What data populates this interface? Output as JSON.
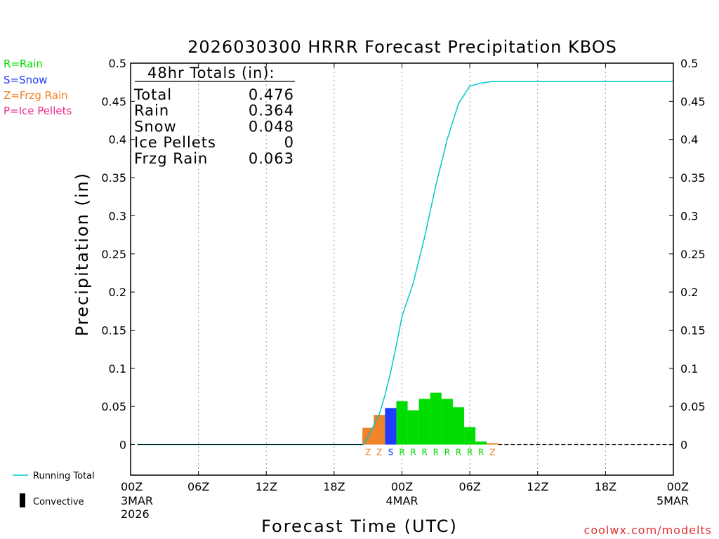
{
  "chart_data": {
    "type": "bar",
    "title": "2026030300 HRRR Forecast Precipitation KBOS",
    "xlabel": "Forecast Time (UTC)",
    "ylabel": "Precipitation (in)",
    "ylim": [
      -0.04,
      0.5
    ],
    "xlim_hours": [
      0,
      48
    ],
    "y_ticks": [
      "0.5",
      "0.45",
      "0.4",
      "0.35",
      "0.3",
      "0.25",
      "0.2",
      "0.15",
      "0.1",
      "0.05",
      "0"
    ],
    "y_tick_values": [
      0.5,
      0.45,
      0.4,
      0.35,
      0.3,
      0.25,
      0.2,
      0.15,
      0.1,
      0.05,
      0
    ],
    "x_ticks": [
      {
        "hour": 0,
        "label": "00Z",
        "sub1": "3MAR",
        "sub2": "2026"
      },
      {
        "hour": 6,
        "label": "06Z",
        "sub1": "",
        "sub2": ""
      },
      {
        "hour": 12,
        "label": "12Z",
        "sub1": "",
        "sub2": ""
      },
      {
        "hour": 18,
        "label": "18Z",
        "sub1": "",
        "sub2": ""
      },
      {
        "hour": 24,
        "label": "00Z",
        "sub1": "4MAR",
        "sub2": ""
      },
      {
        "hour": 30,
        "label": "06Z",
        "sub1": "",
        "sub2": ""
      },
      {
        "hour": 36,
        "label": "12Z",
        "sub1": "",
        "sub2": ""
      },
      {
        "hour": 42,
        "label": "18Z",
        "sub1": "",
        "sub2": ""
      },
      {
        "hour": 48,
        "label": "00Z",
        "sub1": "5MAR",
        "sub2": ""
      }
    ],
    "bars": [
      {
        "hour": 21,
        "value": 0.022,
        "type": "Z"
      },
      {
        "hour": 22,
        "value": 0.039,
        "type": "Z"
      },
      {
        "hour": 23,
        "value": 0.048,
        "type": "S"
      },
      {
        "hour": 24,
        "value": 0.057,
        "type": "R"
      },
      {
        "hour": 25,
        "value": 0.045,
        "type": "R"
      },
      {
        "hour": 26,
        "value": 0.06,
        "type": "R"
      },
      {
        "hour": 27,
        "value": 0.068,
        "type": "R"
      },
      {
        "hour": 28,
        "value": 0.06,
        "type": "R"
      },
      {
        "hour": 29,
        "value": 0.049,
        "type": "R"
      },
      {
        "hour": 30,
        "value": 0.023,
        "type": "R"
      },
      {
        "hour": 31,
        "value": 0.004,
        "type": "R"
      },
      {
        "hour": 32,
        "value": 0.002,
        "type": "Z"
      }
    ],
    "running_total": {
      "name": "Running Total",
      "x": [
        0.6,
        19,
        20.6,
        21,
        21.5,
        22,
        22.5,
        23,
        23.5,
        24,
        25,
        26,
        27,
        28,
        29,
        30,
        31,
        32,
        33,
        48
      ],
      "y": [
        0,
        0,
        0,
        0.01,
        0.025,
        0.04,
        0.065,
        0.095,
        0.13,
        0.168,
        0.212,
        0.272,
        0.34,
        0.4,
        0.447,
        0.47,
        0.474,
        0.476,
        0.476,
        0.476
      ]
    },
    "type_colors": {
      "R": "#00dd00",
      "S": "#1e3cff",
      "Z": "#f08228",
      "P": "#f0288c"
    },
    "line_color": "#00c8c8"
  },
  "legend": {
    "rain": "R=Rain",
    "snow": "S=Snow",
    "frzg": "Z=Frzg Rain",
    "ice": "P=Ice Pellets",
    "running_total": "Running Total",
    "convective": "Convective"
  },
  "totals": {
    "header": "48hr Totals (in):",
    "rows": [
      {
        "label": "Total",
        "value": "0.476"
      },
      {
        "label": "Rain",
        "value": "0.364"
      },
      {
        "label": "Snow",
        "value": "0.048"
      },
      {
        "label": "Ice Pellets",
        "value": "0"
      },
      {
        "label": "Frzg Rain",
        "value": "0.063"
      }
    ]
  },
  "credit": "coolwx.com/modelts"
}
